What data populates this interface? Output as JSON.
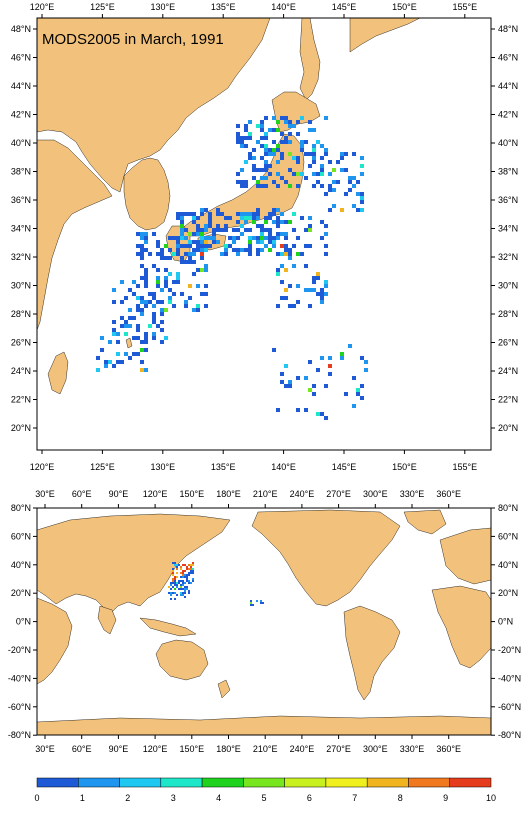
{
  "top_map": {
    "title": "MODS2005 in March, 1991",
    "lon_labels": [
      "120°E",
      "125°E",
      "130°E",
      "135°E",
      "140°E",
      "145°E",
      "150°E",
      "155°E"
    ],
    "lat_labels": [
      "48°N",
      "46°N",
      "44°N",
      "42°N",
      "40°N",
      "38°N",
      "36°N",
      "34°N",
      "32°N",
      "30°N",
      "28°N",
      "26°N",
      "24°N",
      "22°N",
      "20°N"
    ]
  },
  "bottom_map": {
    "lon_labels": [
      "30°E",
      "60°E",
      "90°E",
      "120°E",
      "150°E",
      "180°E",
      "210°E",
      "240°E",
      "270°E",
      "300°E",
      "330°E",
      "360°E"
    ],
    "lat_labels": [
      "80°N",
      "60°N",
      "40°N",
      "20°N",
      "0°N",
      "-20°N",
      "-40°N",
      "-60°N",
      "-80°N"
    ]
  },
  "colorbar": {
    "labels": [
      "0",
      "1",
      "2",
      "3",
      "4",
      "5",
      "6",
      "7",
      "8",
      "9",
      "10"
    ],
    "colors": [
      "#1e5ad6",
      "#1e96f0",
      "#1ec8f0",
      "#1ee6c8",
      "#1ed21e",
      "#78e61e",
      "#c8f01e",
      "#f0f01e",
      "#f0b41e",
      "#f0781e",
      "#e63c1e"
    ]
  },
  "colors": {
    "land": "#f2c27c",
    "ocean": "#ffffff"
  }
}
